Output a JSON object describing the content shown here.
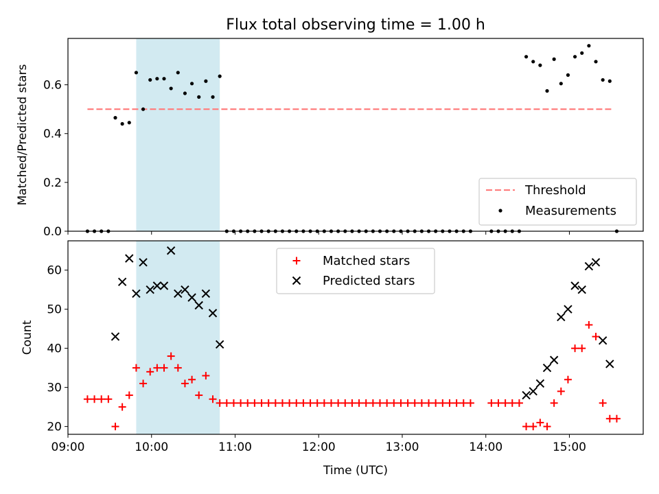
{
  "title": "Flux total observing time = 1.00 h",
  "colors": {
    "threshold": "#ff7f7f",
    "shade": "#add8e6",
    "matched": "#ff0000",
    "predicted": "#000000",
    "measurement": "#000000"
  },
  "chart_data": [
    {
      "type": "scatter",
      "panel": "top",
      "ylabel": "Matched/Predicted stars",
      "xlabel": "",
      "xlim": [
        "09:00",
        "15:53"
      ],
      "ylim": [
        0,
        0.79
      ],
      "yticks": [
        0.0,
        0.2,
        0.4,
        0.6
      ],
      "ytick_labels": [
        "0.0",
        "0.2",
        "0.4",
        "0.6"
      ],
      "shaded_region": [
        "09:49",
        "10:49"
      ],
      "legend": {
        "position": "lower-right",
        "entries": [
          "Threshold",
          "Measurements"
        ]
      },
      "threshold": {
        "name": "Threshold",
        "value": 0.5,
        "x_range": [
          "09:14",
          "15:32"
        ],
        "style": "dashed"
      },
      "series": [
        {
          "name": "Measurements",
          "marker": "dot",
          "x": [
            "09:14",
            "09:19",
            "09:24",
            "09:29",
            "09:34",
            "09:39",
            "09:44",
            "09:49",
            "09:54",
            "09:59",
            "10:04",
            "10:09",
            "10:14",
            "10:19",
            "10:24",
            "10:29",
            "10:34",
            "10:39",
            "10:44",
            "10:49",
            "10:54",
            "10:59",
            "11:04",
            "11:09",
            "11:14",
            "11:19",
            "11:24",
            "11:29",
            "11:34",
            "11:39",
            "11:44",
            "11:49",
            "11:54",
            "11:59",
            "12:04",
            "12:09",
            "12:14",
            "12:19",
            "12:24",
            "12:29",
            "12:34",
            "12:39",
            "12:44",
            "12:49",
            "12:54",
            "12:59",
            "13:04",
            "13:09",
            "13:14",
            "13:19",
            "13:24",
            "13:29",
            "13:34",
            "13:39",
            "13:44",
            "13:49",
            "14:04",
            "14:09",
            "14:14",
            "14:19",
            "14:24",
            "14:29",
            "14:34",
            "14:39",
            "14:44",
            "14:49",
            "14:54",
            "14:59",
            "15:04",
            "15:09",
            "15:14",
            "15:19",
            "15:24",
            "15:29",
            "15:34"
          ],
          "y": [
            0,
            0,
            0,
            0,
            0.465,
            0.44,
            0.445,
            0.65,
            0.5,
            0.62,
            0.625,
            0.625,
            0.585,
            0.65,
            0.565,
            0.605,
            0.55,
            0.615,
            0.55,
            0.635,
            0,
            0,
            0,
            0,
            0,
            0,
            0,
            0,
            0,
            0,
            0,
            0,
            0,
            0,
            0,
            0,
            0,
            0,
            0,
            0,
            0,
            0,
            0,
            0,
            0,
            0,
            0,
            0,
            0,
            0,
            0,
            0,
            0,
            0,
            0,
            0,
            0,
            0,
            0,
            0,
            0,
            0.715,
            0.695,
            0.68,
            0.575,
            0.705,
            0.605,
            0.64,
            0.715,
            0.73,
            0.76,
            0.695,
            0.62,
            0.615,
            0
          ]
        }
      ]
    },
    {
      "type": "scatter",
      "panel": "bottom",
      "ylabel": "Count",
      "xlabel": "Time (UTC)",
      "xlim": [
        "09:00",
        "15:53"
      ],
      "ylim": [
        18,
        67.5
      ],
      "xticks": [
        "09:00",
        "10:00",
        "11:00",
        "12:00",
        "13:00",
        "14:00",
        "15:00"
      ],
      "yticks": [
        20,
        30,
        40,
        50,
        60
      ],
      "ytick_labels": [
        "20",
        "30",
        "40",
        "50",
        "60"
      ],
      "shaded_region": [
        "09:49",
        "10:49"
      ],
      "legend": {
        "position": "upper-center",
        "entries": [
          "Matched stars",
          "Predicted stars"
        ]
      },
      "series": [
        {
          "name": "Matched stars",
          "marker": "plus",
          "x": [
            "09:14",
            "09:19",
            "09:24",
            "09:29",
            "09:34",
            "09:39",
            "09:44",
            "09:49",
            "09:54",
            "09:59",
            "10:04",
            "10:09",
            "10:14",
            "10:19",
            "10:24",
            "10:29",
            "10:34",
            "10:39",
            "10:44",
            "10:49",
            "10:54",
            "10:59",
            "11:04",
            "11:09",
            "11:14",
            "11:19",
            "11:24",
            "11:29",
            "11:34",
            "11:39",
            "11:44",
            "11:49",
            "11:54",
            "11:59",
            "12:04",
            "12:09",
            "12:14",
            "12:19",
            "12:24",
            "12:29",
            "12:34",
            "12:39",
            "12:44",
            "12:49",
            "12:54",
            "12:59",
            "13:04",
            "13:09",
            "13:14",
            "13:19",
            "13:24",
            "13:29",
            "13:34",
            "13:39",
            "13:44",
            "13:49",
            "14:04",
            "14:09",
            "14:14",
            "14:19",
            "14:24",
            "14:29",
            "14:34",
            "14:39",
            "14:44",
            "14:49",
            "14:54",
            "14:59",
            "15:04",
            "15:09",
            "15:14",
            "15:19",
            "15:24",
            "15:29",
            "15:34"
          ],
          "y": [
            27,
            27,
            27,
            27,
            20,
            25,
            28,
            35,
            31,
            34,
            35,
            35,
            38,
            35,
            31,
            32,
            28,
            33,
            27,
            26,
            26,
            26,
            26,
            26,
            26,
            26,
            26,
            26,
            26,
            26,
            26,
            26,
            26,
            26,
            26,
            26,
            26,
            26,
            26,
            26,
            26,
            26,
            26,
            26,
            26,
            26,
            26,
            26,
            26,
            26,
            26,
            26,
            26,
            26,
            26,
            26,
            26,
            26,
            26,
            26,
            26,
            20,
            20,
            21,
            20,
            26,
            29,
            32,
            40,
            40,
            46,
            43,
            26,
            22,
            22
          ]
        },
        {
          "name": "Predicted stars",
          "marker": "x",
          "x": [
            "09:34",
            "09:39",
            "09:44",
            "09:49",
            "09:54",
            "09:59",
            "10:04",
            "10:09",
            "10:14",
            "10:19",
            "10:24",
            "10:29",
            "10:34",
            "10:39",
            "10:44",
            "10:49",
            "14:29",
            "14:34",
            "14:39",
            "14:44",
            "14:49",
            "14:54",
            "14:59",
            "15:04",
            "15:09",
            "15:14",
            "15:19",
            "15:24",
            "15:29"
          ],
          "y": [
            43,
            57,
            63,
            54,
            62,
            55,
            56,
            56,
            65,
            54,
            55,
            53,
            51,
            54,
            49,
            41,
            28,
            29,
            31,
            35,
            37,
            48,
            50,
            56,
            55,
            61,
            62,
            42,
            36
          ]
        }
      ]
    }
  ]
}
